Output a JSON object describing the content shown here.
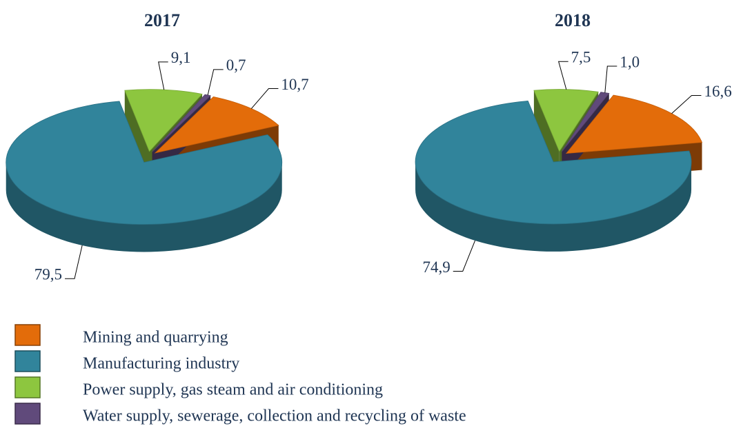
{
  "chart_data": {
    "type": "pie",
    "categories": [
      "Mining and quarrying",
      "Manufacturing industry",
      "Power supply, gas steam and air conditioning",
      "Water supply, sewerage, collection and recycling of waste"
    ],
    "colors": [
      "#e36c0a",
      "#31849b",
      "#8dc63f",
      "#604a7b"
    ],
    "series": [
      {
        "name": "2017",
        "values": [
          10.7,
          79.5,
          9.1,
          0.7
        ],
        "value_labels": [
          "10,7",
          "79,5",
          "9,1",
          "0,7"
        ]
      },
      {
        "name": "2018",
        "values": [
          16.6,
          74.9,
          7.5,
          1.0
        ],
        "value_labels": [
          "16,6",
          "74,9",
          "7,5",
          "1,0"
        ]
      }
    ]
  }
}
